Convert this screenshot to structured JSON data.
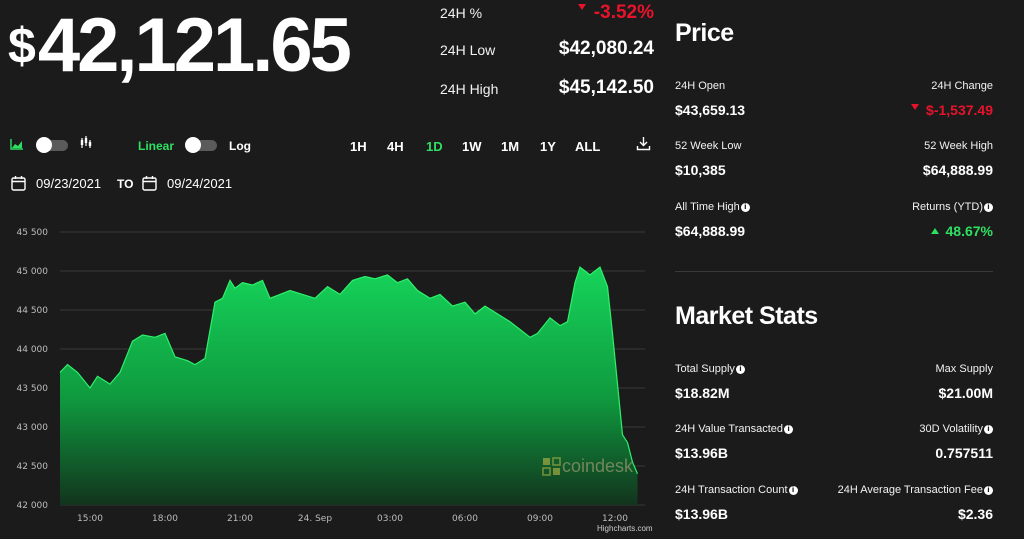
{
  "price": {
    "currency": "$",
    "value": "42,121.65"
  },
  "stats24h": [
    {
      "label": "24H %",
      "value": "-3.52%",
      "direction": "down"
    },
    {
      "label": "24H Low",
      "value": "$42,080.24"
    },
    {
      "label": "24H High",
      "value": "$45,142.50"
    }
  ],
  "toolbar": {
    "linear_label": "Linear",
    "log_label": "Log",
    "timeframes": [
      "1H",
      "4H",
      "1D",
      "1W",
      "1M",
      "1Y",
      "ALL"
    ],
    "active_timeframe": "1D"
  },
  "date_range": {
    "from": "09/23/2021",
    "to_label": "TO",
    "to": "09/24/2021"
  },
  "watermark": "coindesk",
  "credit": "Highcharts.com",
  "colors": {
    "accent": "#2ee061",
    "negative": "#e8132b",
    "background": "#1b1b1b"
  },
  "price_panel": {
    "title": "Price",
    "items": [
      {
        "label": "24H Open",
        "value": "$43,659.13",
        "align": "left"
      },
      {
        "label": "24H Change",
        "value": "$-1,537.49",
        "align": "right",
        "direction": "down"
      },
      {
        "label": "52 Week Low",
        "value": "$10,385",
        "align": "left"
      },
      {
        "label": "52 Week High",
        "value": "$64,888.99",
        "align": "right"
      },
      {
        "label": "All Time High",
        "value": "$64,888.99",
        "align": "left",
        "info": true
      },
      {
        "label": "Returns (YTD)",
        "value": "48.67%",
        "align": "right",
        "info": true,
        "direction": "up"
      }
    ]
  },
  "market_stats": {
    "title": "Market Stats",
    "items": [
      {
        "label": "Total Supply",
        "value": "$18.82M",
        "align": "left",
        "info": true
      },
      {
        "label": "Max Supply",
        "value": "$21.00M",
        "align": "right"
      },
      {
        "label": "24H Value Transacted",
        "value": "$13.96B",
        "align": "left",
        "info": true
      },
      {
        "label": "30D Volatility",
        "value": "0.757511",
        "align": "right",
        "info": true
      },
      {
        "label": "24H Transaction Count",
        "value": "$13.96B",
        "align": "left",
        "info": true
      },
      {
        "label": "24H Average Transaction Fee",
        "value": "$2.36",
        "align": "right",
        "info": true
      }
    ]
  },
  "chart_data": {
    "type": "area",
    "ylim": [
      42000,
      45500
    ],
    "yticks": [
      "45 500",
      "45 000",
      "44 500",
      "44 000",
      "43 500",
      "43 000",
      "42 500",
      "42 000"
    ],
    "ytick_values": [
      45500,
      45000,
      44500,
      44000,
      43500,
      43000,
      42500,
      42000
    ],
    "xticks": [
      "15:00",
      "18:00",
      "21:00",
      "24. Sep",
      "03:00",
      "06:00",
      "09:00",
      "12:00"
    ],
    "xtick_hours": [
      15,
      18,
      21,
      24,
      27,
      30,
      33,
      36
    ],
    "x_hours": [
      13.8,
      14.1,
      14.5,
      15.0,
      15.3,
      15.8,
      16.2,
      16.7,
      17.1,
      17.6,
      18.0,
      18.4,
      18.9,
      19.2,
      19.6,
      20.0,
      20.3,
      20.6,
      20.8,
      21.1,
      21.5,
      21.9,
      22.2,
      22.6,
      23.0,
      23.5,
      24.0,
      24.5,
      25.0,
      25.5,
      26.0,
      26.4,
      26.9,
      27.3,
      27.7,
      28.1,
      28.6,
      29.0,
      29.5,
      30.0,
      30.4,
      30.8,
      31.3,
      31.8,
      32.2,
      32.6,
      32.9,
      33.4,
      33.8,
      34.1,
      34.4,
      34.6,
      35.0,
      35.4,
      35.7,
      35.9,
      36.1,
      36.3,
      36.5,
      36.7,
      36.9
    ],
    "y": [
      43700,
      43800,
      43700,
      43500,
      43650,
      43550,
      43700,
      44100,
      44180,
      44150,
      44200,
      43900,
      43850,
      43800,
      43880,
      44600,
      44650,
      44880,
      44780,
      44850,
      44820,
      44880,
      44650,
      44700,
      44750,
      44700,
      44650,
      44800,
      44700,
      44880,
      44930,
      44900,
      44950,
      44850,
      44900,
      44750,
      44650,
      44700,
      44550,
      44600,
      44450,
      44550,
      44450,
      44350,
      44250,
      44150,
      44200,
      44400,
      44300,
      44350,
      44850,
      45050,
      44950,
      45050,
      44800,
      44200,
      43550,
      42900,
      42800,
      42550,
      42400
    ]
  }
}
